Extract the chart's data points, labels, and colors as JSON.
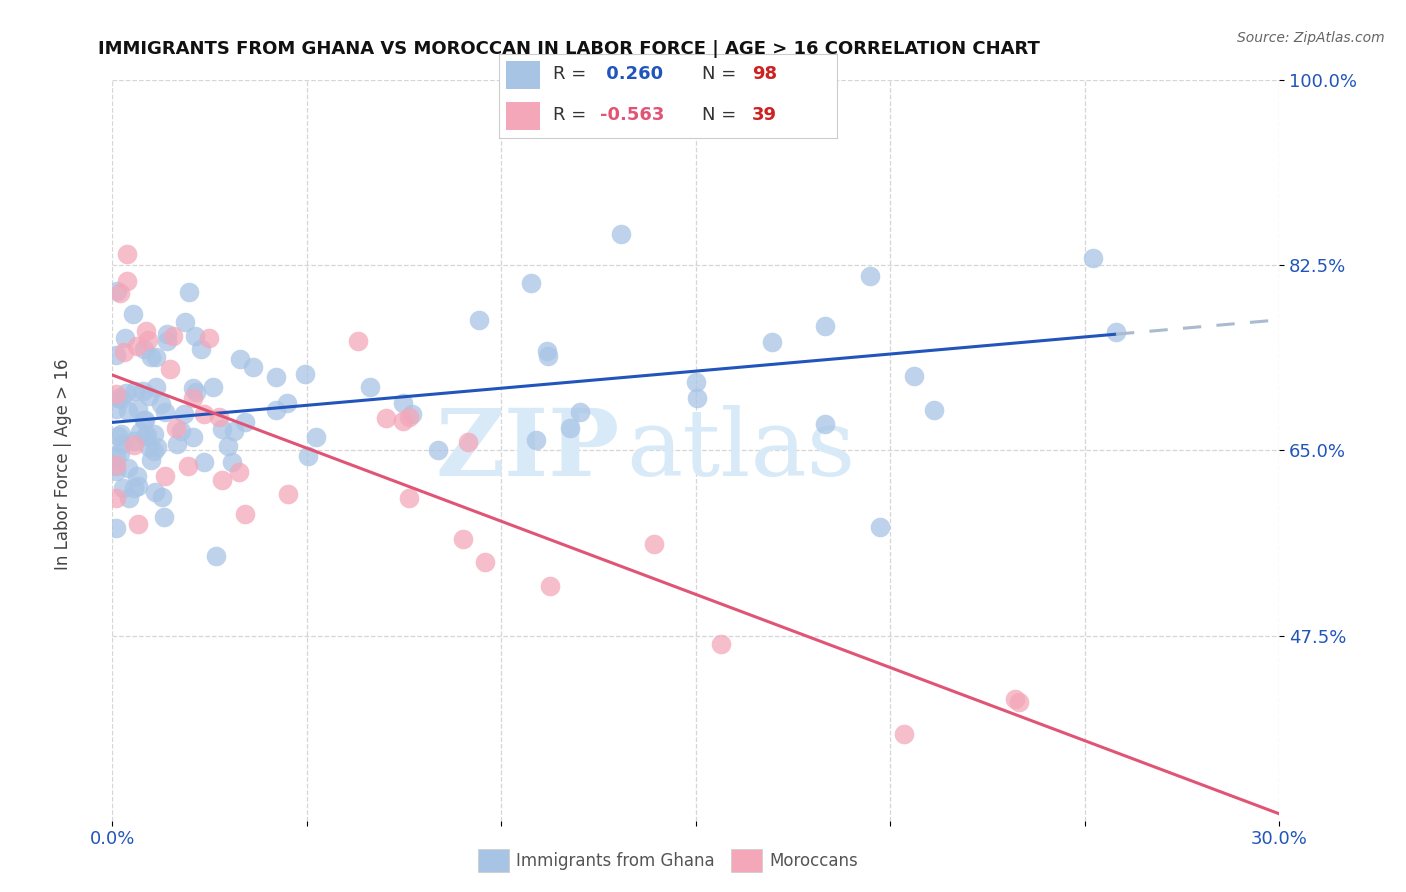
{
  "title": "IMMIGRANTS FROM GHANA VS MOROCCAN IN LABOR FORCE | AGE > 16 CORRELATION CHART",
  "source": "Source: ZipAtlas.com",
  "ylabel": "In Labor Force | Age > 16",
  "xlim": [
    0.0,
    0.3
  ],
  "ylim": [
    0.3,
    1.0
  ],
  "yticks": [
    0.475,
    0.65,
    0.825,
    1.0
  ],
  "ytick_labels": [
    "47.5%",
    "65.0%",
    "82.5%",
    "100.0%"
  ],
  "xticks": [
    0.0,
    0.05,
    0.1,
    0.15,
    0.2,
    0.25,
    0.3
  ],
  "xtick_labels": [
    "0.0%",
    "",
    "",
    "",
    "",
    "",
    "30.0%"
  ],
  "ghana_R": 0.26,
  "ghana_N": 98,
  "moroccan_R": -0.563,
  "moroccan_N": 39,
  "ghana_color": "#a8c4e5",
  "moroccan_color": "#f4a7b9",
  "trend_ghana_color": "#2255bb",
  "trend_moroccan_color": "#e05575",
  "trend_ghana_dash_color": "#aabbd0",
  "background_color": "#ffffff",
  "grid_color": "#cccccc",
  "watermark_color": "#d8eaf8",
  "legend_R_color": "#2255bb",
  "legend_N_color": "#cc2222",
  "title_fontsize": 13,
  "tick_fontsize": 13,
  "ylabel_fontsize": 12
}
